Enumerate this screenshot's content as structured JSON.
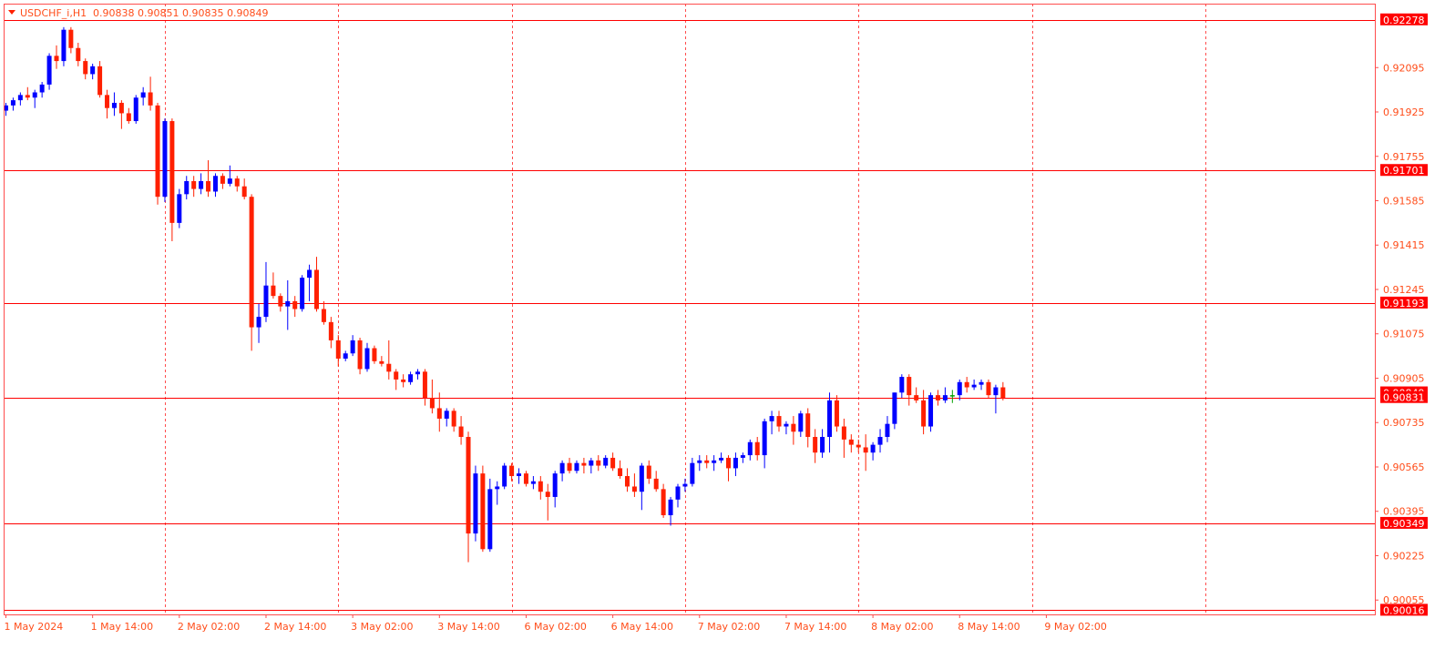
{
  "colors": {
    "bull": "#0000ff",
    "bear": "#ff2000",
    "doji": "#00a000",
    "level_line": "#ff0000",
    "grid": "#ff4d4d",
    "axis": "#ff4d4d",
    "text": "#ff4d1a",
    "label_bg": "#ff0000",
    "label_text": "#ffffff"
  },
  "header": {
    "symbol_label": "USDCHF_i,H1",
    "ohlc_text": "0.90838 0.90851 0.90835 0.90849"
  },
  "chart_data": {
    "type": "candlestick",
    "timeframe": "H1",
    "ylim": [
      0.9,
      0.9234
    ],
    "y_ticks": [
      "0.92095",
      "0.91925",
      "0.91755",
      "0.91585",
      "0.91415",
      "0.91245",
      "0.91075",
      "0.90905",
      "0.90735",
      "0.90565",
      "0.90395",
      "0.90225",
      "0.90055"
    ],
    "x_tick_labels": [
      "1 May 2024",
      "1 May 14:00",
      "2 May 02:00",
      "2 May 14:00",
      "3 May 02:00",
      "3 May 14:00",
      "6 May 02:00",
      "6 May 14:00",
      "7 May 02:00",
      "7 May 14:00",
      "8 May 02:00",
      "8 May 14:00",
      "9 May 02:00"
    ],
    "x_tick_bar_index": [
      0,
      12,
      24,
      36,
      48,
      60,
      72,
      84,
      96,
      108,
      120,
      132,
      144
    ],
    "vertical_grid_bar_index": [
      22,
      46,
      70,
      94,
      118,
      142,
      166
    ],
    "horizontal_levels": [
      "0.92278",
      "0.91701",
      "0.91193",
      "0.90831",
      "0.90349",
      "0.90016"
    ],
    "current_price": "0.90849",
    "candles": [
      [
        0.9193,
        0.9196,
        0.9191,
        0.9195
      ],
      [
        0.9195,
        0.9198,
        0.9193,
        0.9197
      ],
      [
        0.9197,
        0.92,
        0.9195,
        0.9199
      ],
      [
        0.9199,
        0.9202,
        0.9197,
        0.9198
      ],
      [
        0.9198,
        0.9201,
        0.9194,
        0.92
      ],
      [
        0.92,
        0.9204,
        0.9198,
        0.9203
      ],
      [
        0.9203,
        0.9215,
        0.9201,
        0.9214
      ],
      [
        0.9214,
        0.9218,
        0.9209,
        0.9212
      ],
      [
        0.9212,
        0.9225,
        0.921,
        0.9224
      ],
      [
        0.9224,
        0.9225,
        0.9215,
        0.9217
      ],
      [
        0.9217,
        0.9219,
        0.921,
        0.9212
      ],
      [
        0.9212,
        0.9213,
        0.9205,
        0.9207
      ],
      [
        0.9207,
        0.9211,
        0.9205,
        0.921
      ],
      [
        0.921,
        0.9212,
        0.9198,
        0.9199
      ],
      [
        0.9199,
        0.9201,
        0.919,
        0.9194
      ],
      [
        0.9194,
        0.92,
        0.9191,
        0.9196
      ],
      [
        0.9196,
        0.9197,
        0.9186,
        0.9192
      ],
      [
        0.9192,
        0.9194,
        0.9188,
        0.9189
      ],
      [
        0.9189,
        0.9199,
        0.9188,
        0.9198
      ],
      [
        0.9198,
        0.9202,
        0.9195,
        0.92
      ],
      [
        0.92,
        0.9206,
        0.9193,
        0.9195
      ],
      [
        0.9195,
        0.9196,
        0.9157,
        0.916
      ],
      [
        0.916,
        0.919,
        0.9158,
        0.9189
      ],
      [
        0.9189,
        0.919,
        0.9143,
        0.915
      ],
      [
        0.915,
        0.9163,
        0.9148,
        0.9161
      ],
      [
        0.9161,
        0.9168,
        0.9159,
        0.9166
      ],
      [
        0.9166,
        0.9168,
        0.916,
        0.9163
      ],
      [
        0.9163,
        0.9169,
        0.9161,
        0.9166
      ],
      [
        0.9166,
        0.9174,
        0.916,
        0.9162
      ],
      [
        0.9162,
        0.9169,
        0.916,
        0.9168
      ],
      [
        0.9168,
        0.9169,
        0.9163,
        0.9165
      ],
      [
        0.9165,
        0.9172,
        0.9164,
        0.9167
      ],
      [
        0.9167,
        0.9168,
        0.9162,
        0.9164
      ],
      [
        0.9164,
        0.9167,
        0.9159,
        0.916
      ],
      [
        0.916,
        0.9161,
        0.9101,
        0.911
      ],
      [
        0.911,
        0.9119,
        0.9104,
        0.9114
      ],
      [
        0.9114,
        0.9135,
        0.9112,
        0.9126
      ],
      [
        0.9126,
        0.9131,
        0.9121,
        0.9122
      ],
      [
        0.9122,
        0.9123,
        0.9116,
        0.9118
      ],
      [
        0.9118,
        0.9128,
        0.9109,
        0.912
      ],
      [
        0.912,
        0.9122,
        0.9114,
        0.9117
      ],
      [
        0.9117,
        0.913,
        0.9116,
        0.9129
      ],
      [
        0.9129,
        0.9134,
        0.912,
        0.9132
      ],
      [
        0.9132,
        0.9137,
        0.9116,
        0.9117
      ],
      [
        0.9117,
        0.912,
        0.9111,
        0.9112
      ],
      [
        0.9112,
        0.9114,
        0.9102,
        0.9105
      ],
      [
        0.9105,
        0.9107,
        0.9095,
        0.9098
      ],
      [
        0.9098,
        0.9101,
        0.9097,
        0.91
      ],
      [
        0.91,
        0.9107,
        0.9099,
        0.9105
      ],
      [
        0.9105,
        0.9106,
        0.9092,
        0.9094
      ],
      [
        0.9094,
        0.9104,
        0.9093,
        0.9102
      ],
      [
        0.9102,
        0.9103,
        0.9096,
        0.9097
      ],
      [
        0.9097,
        0.9099,
        0.9095,
        0.9096
      ],
      [
        0.9096,
        0.9105,
        0.909,
        0.9093
      ],
      [
        0.9093,
        0.9094,
        0.9086,
        0.909
      ],
      [
        0.909,
        0.9092,
        0.9087,
        0.9089
      ],
      [
        0.9089,
        0.9093,
        0.9088,
        0.9092
      ],
      [
        0.9092,
        0.9094,
        0.909,
        0.9093
      ],
      [
        0.9093,
        0.9094,
        0.908,
        0.9083
      ],
      [
        0.9083,
        0.909,
        0.9077,
        0.9079
      ],
      [
        0.9079,
        0.9085,
        0.907,
        0.9075
      ],
      [
        0.9075,
        0.9079,
        0.9072,
        0.9078
      ],
      [
        0.9078,
        0.9079,
        0.907,
        0.9072
      ],
      [
        0.9072,
        0.9076,
        0.9065,
        0.9068
      ],
      [
        0.9068,
        0.907,
        0.902,
        0.9031
      ],
      [
        0.9031,
        0.9057,
        0.9028,
        0.9054
      ],
      [
        0.9054,
        0.9057,
        0.9024,
        0.9025
      ],
      [
        0.9025,
        0.9052,
        0.9024,
        0.9048
      ],
      [
        0.9048,
        0.9051,
        0.9042,
        0.9049
      ],
      [
        0.9049,
        0.9058,
        0.9048,
        0.9057
      ],
      [
        0.9057,
        0.9058,
        0.9051,
        0.9053
      ],
      [
        0.9053,
        0.9056,
        0.905,
        0.9054
      ],
      [
        0.9054,
        0.9055,
        0.9049,
        0.905
      ],
      [
        0.905,
        0.9053,
        0.9048,
        0.9051
      ],
      [
        0.9051,
        0.9053,
        0.9044,
        0.9047
      ],
      [
        0.9047,
        0.905,
        0.9036,
        0.9045
      ],
      [
        0.9045,
        0.9055,
        0.9041,
        0.9054
      ],
      [
        0.9054,
        0.9059,
        0.9051,
        0.9058
      ],
      [
        0.9058,
        0.906,
        0.9054,
        0.9055
      ],
      [
        0.9055,
        0.9059,
        0.9054,
        0.9058
      ],
      [
        0.9058,
        0.906,
        0.9054,
        0.9057
      ],
      [
        0.9057,
        0.906,
        0.9054,
        0.9059
      ],
      [
        0.9059,
        0.9061,
        0.9055,
        0.9057
      ],
      [
        0.9057,
        0.9061,
        0.9056,
        0.906
      ],
      [
        0.906,
        0.9062,
        0.9055,
        0.9056
      ],
      [
        0.9056,
        0.9059,
        0.9052,
        0.9053
      ],
      [
        0.9053,
        0.9056,
        0.9047,
        0.9049
      ],
      [
        0.9049,
        0.9054,
        0.9045,
        0.9047
      ],
      [
        0.9047,
        0.9058,
        0.904,
        0.9057
      ],
      [
        0.9057,
        0.9059,
        0.905,
        0.9052
      ],
      [
        0.9052,
        0.9055,
        0.9047,
        0.9048
      ],
      [
        0.9048,
        0.905,
        0.9037,
        0.9038
      ],
      [
        0.9038,
        0.9045,
        0.9034,
        0.9044
      ],
      [
        0.9044,
        0.905,
        0.9041,
        0.9049
      ],
      [
        0.9049,
        0.9052,
        0.9047,
        0.905
      ],
      [
        0.905,
        0.906,
        0.9049,
        0.9058
      ],
      [
        0.9058,
        0.9061,
        0.9055,
        0.9059
      ],
      [
        0.9059,
        0.9061,
        0.9056,
        0.9058
      ],
      [
        0.9058,
        0.9061,
        0.9055,
        0.9059
      ],
      [
        0.9059,
        0.9062,
        0.9058,
        0.906
      ],
      [
        0.906,
        0.9061,
        0.9051,
        0.9056
      ],
      [
        0.9056,
        0.9062,
        0.9053,
        0.906
      ],
      [
        0.906,
        0.9062,
        0.9058,
        0.9061
      ],
      [
        0.9061,
        0.9067,
        0.9059,
        0.9066
      ],
      [
        0.9066,
        0.9068,
        0.9059,
        0.9061
      ],
      [
        0.9061,
        0.9075,
        0.9056,
        0.9074
      ],
      [
        0.9074,
        0.9078,
        0.9069,
        0.9076
      ],
      [
        0.9076,
        0.9078,
        0.907,
        0.9072
      ],
      [
        0.9072,
        0.9074,
        0.9069,
        0.9073
      ],
      [
        0.9073,
        0.9076,
        0.9065,
        0.907
      ],
      [
        0.907,
        0.9078,
        0.9068,
        0.9077
      ],
      [
        0.9077,
        0.9079,
        0.9064,
        0.9068
      ],
      [
        0.9068,
        0.9071,
        0.9058,
        0.9062
      ],
      [
        0.9062,
        0.9071,
        0.906,
        0.9068
      ],
      [
        0.9068,
        0.9085,
        0.9062,
        0.9082
      ],
      [
        0.9082,
        0.9084,
        0.907,
        0.9072
      ],
      [
        0.9072,
        0.9075,
        0.906,
        0.9067
      ],
      [
        0.9067,
        0.9069,
        0.9062,
        0.9065
      ],
      [
        0.9065,
        0.9067,
        0.9062,
        0.9064
      ],
      [
        0.9064,
        0.9069,
        0.9055,
        0.9062
      ],
      [
        0.9062,
        0.9066,
        0.9059,
        0.9065
      ],
      [
        0.9065,
        0.9071,
        0.9062,
        0.9068
      ],
      [
        0.9068,
        0.9076,
        0.9066,
        0.9073
      ],
      [
        0.9073,
        0.9085,
        0.9071,
        0.9085
      ],
      [
        0.9085,
        0.9092,
        0.9083,
        0.9091
      ],
      [
        0.9091,
        0.9092,
        0.908,
        0.9084
      ],
      [
        0.9084,
        0.9087,
        0.9081,
        0.9082
      ],
      [
        0.9082,
        0.9086,
        0.9069,
        0.9072
      ],
      [
        0.9072,
        0.9085,
        0.907,
        0.9084
      ],
      [
        0.9084,
        0.9086,
        0.908,
        0.9082
      ],
      [
        0.9082,
        0.9087,
        0.9081,
        0.9084
      ],
      [
        0.9084,
        0.9086,
        0.9081,
        0.9084
      ],
      [
        0.9084,
        0.909,
        0.9082,
        0.9089
      ],
      [
        0.9089,
        0.9091,
        0.9085,
        0.9087
      ],
      [
        0.9087,
        0.909,
        0.9086,
        0.9088
      ],
      [
        0.9088,
        0.909,
        0.9086,
        0.9089
      ],
      [
        0.9089,
        0.909,
        0.9083,
        0.9084
      ],
      [
        0.9084,
        0.9088,
        0.9077,
        0.9087
      ],
      [
        0.9087,
        0.9089,
        0.9082,
        0.9083
      ]
    ]
  }
}
